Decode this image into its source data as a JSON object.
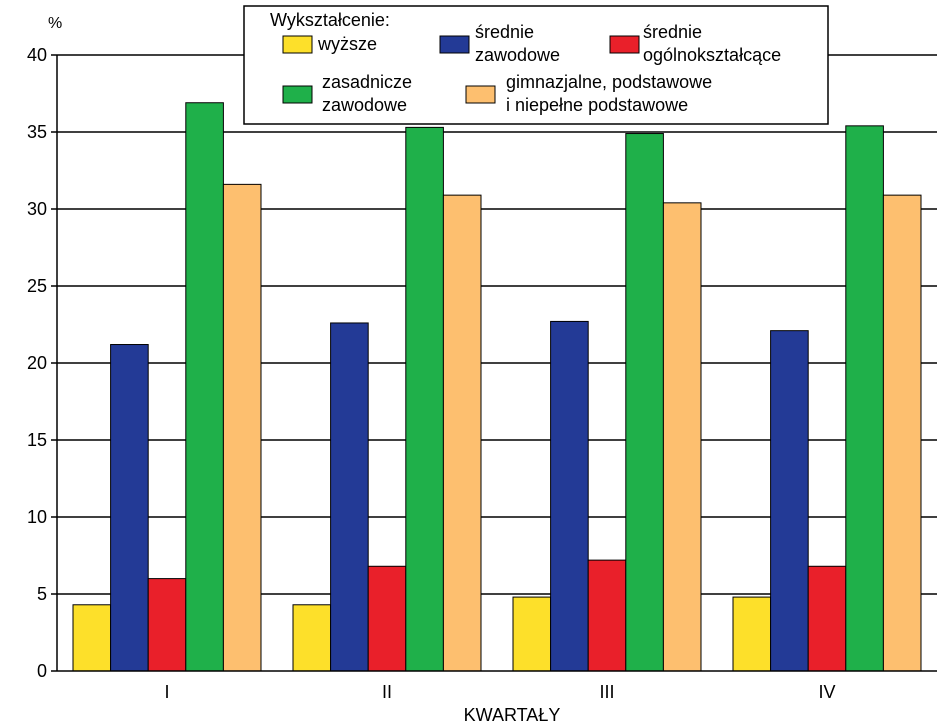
{
  "chart_data": {
    "type": "bar",
    "unit_label": "%",
    "xlabel": "KWARTAŁY",
    "ylabel": "",
    "ylim": [
      0,
      40
    ],
    "yticks": [
      0,
      5,
      10,
      15,
      20,
      25,
      30,
      35,
      40
    ],
    "grid": true,
    "legend_position": "top",
    "legend_title": "Wykształcenie:",
    "categories": [
      "I",
      "II",
      "III",
      "IV"
    ],
    "series": [
      {
        "name": "wyższe",
        "name_lines": [
          "wyższe"
        ],
        "color": "#fde02a",
        "values": [
          4.3,
          4.3,
          4.8,
          4.8
        ]
      },
      {
        "name": "średnie zawodowe",
        "name_lines": [
          "średnie",
          "zawodowe"
        ],
        "color": "#233a96",
        "values": [
          21.2,
          22.6,
          22.7,
          22.1
        ]
      },
      {
        "name": "średnie ogólnokształcące",
        "name_lines": [
          "średnie",
          "ogólnokształcące"
        ],
        "color": "#e9202a",
        "values": [
          6.0,
          6.8,
          7.2,
          6.8
        ]
      },
      {
        "name": "zasadnicze zawodowe",
        "name_lines": [
          "zasadnicze",
          "zawodowe"
        ],
        "color": "#1fb04a",
        "values": [
          36.9,
          35.3,
          34.9,
          35.4
        ]
      },
      {
        "name": "gimnazjalne, podstawowe i niepełne podstawowe",
        "name_lines": [
          "gimnazjalne, podstawowe",
          "i niepełne podstawowe"
        ],
        "color": "#fdbf6f",
        "values": [
          31.6,
          30.9,
          30.4,
          30.9
        ]
      }
    ]
  }
}
